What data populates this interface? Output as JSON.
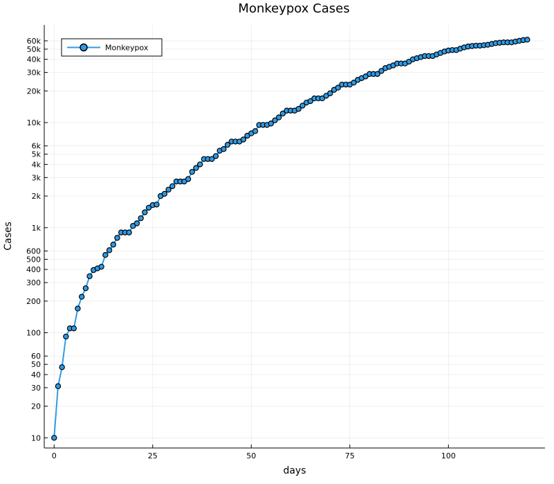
{
  "chart_data": {
    "type": "line",
    "title": "Monkeypox Cases",
    "xlabel": "days",
    "ylabel": "Cases",
    "yscale": "log",
    "xlim": [
      -2.5,
      124.5
    ],
    "ylim": [
      8,
      85000
    ],
    "grid": true,
    "legend_position": "top-left",
    "x_ticks": [
      {
        "value": 0,
        "label": "0"
      },
      {
        "value": 25,
        "label": "25"
      },
      {
        "value": 50,
        "label": "50"
      },
      {
        "value": 75,
        "label": "75"
      },
      {
        "value": 100,
        "label": "100"
      }
    ],
    "y_ticks": [
      {
        "value": 10,
        "label": "10"
      },
      {
        "value": 20,
        "label": "20"
      },
      {
        "value": 30,
        "label": "30"
      },
      {
        "value": 40,
        "label": "40"
      },
      {
        "value": 50,
        "label": "50"
      },
      {
        "value": 60,
        "label": "60"
      },
      {
        "value": 100,
        "label": "100"
      },
      {
        "value": 200,
        "label": "200"
      },
      {
        "value": 300,
        "label": "300"
      },
      {
        "value": 400,
        "label": "400"
      },
      {
        "value": 500,
        "label": "500"
      },
      {
        "value": 600,
        "label": "600"
      },
      {
        "value": 1000,
        "label": "1k"
      },
      {
        "value": 2000,
        "label": "2k"
      },
      {
        "value": 3000,
        "label": "3k"
      },
      {
        "value": 4000,
        "label": "4k"
      },
      {
        "value": 5000,
        "label": "5k"
      },
      {
        "value": 6000,
        "label": "6k"
      },
      {
        "value": 10000,
        "label": "10k"
      },
      {
        "value": 20000,
        "label": "20k"
      },
      {
        "value": 30000,
        "label": "30k"
      },
      {
        "value": 40000,
        "label": "40k"
      },
      {
        "value": 50000,
        "label": "50k"
      },
      {
        "value": 60000,
        "label": "60k"
      }
    ],
    "series": [
      {
        "name": "Monkeypox",
        "color": "#2E9BE6",
        "marker": "circle",
        "x": [
          0,
          1,
          2,
          3,
          4,
          5,
          6,
          7,
          8,
          9,
          10,
          11,
          12,
          13,
          14,
          15,
          16,
          17,
          18,
          19,
          20,
          21,
          22,
          23,
          24,
          25,
          26,
          27,
          28,
          29,
          30,
          31,
          32,
          33,
          34,
          35,
          36,
          37,
          38,
          39,
          40,
          41,
          42,
          43,
          44,
          45,
          46,
          47,
          48,
          49,
          50,
          51,
          52,
          53,
          54,
          55,
          56,
          57,
          58,
          59,
          60,
          61,
          62,
          63,
          64,
          65,
          66,
          67,
          68,
          69,
          70,
          71,
          72,
          73,
          74,
          75,
          76,
          77,
          78,
          79,
          80,
          81,
          82,
          83,
          84,
          85,
          86,
          87,
          88,
          89,
          90,
          91,
          92,
          93,
          94,
          95,
          96,
          97,
          98,
          99,
          100,
          101,
          102,
          103,
          104,
          105,
          106,
          107,
          108,
          109,
          110,
          111,
          112,
          113,
          114,
          115,
          116,
          117,
          118,
          119,
          120
        ],
        "values": [
          10,
          31,
          47,
          92,
          110,
          110,
          170,
          220,
          265,
          345,
          395,
          410,
          425,
          550,
          610,
          690,
          800,
          900,
          900,
          900,
          1040,
          1100,
          1230,
          1400,
          1550,
          1640,
          1660,
          2000,
          2100,
          2300,
          2480,
          2750,
          2750,
          2750,
          2900,
          3400,
          3700,
          4000,
          4500,
          4500,
          4500,
          4800,
          5400,
          5600,
          6150,
          6600,
          6600,
          6600,
          6900,
          7500,
          7900,
          8300,
          9500,
          9500,
          9500,
          9800,
          10500,
          11200,
          12200,
          13000,
          13000,
          13000,
          13500,
          14500,
          15500,
          16000,
          17000,
          17000,
          17000,
          18000,
          19000,
          20500,
          21500,
          23000,
          23000,
          23000,
          24000,
          25500,
          26500,
          27500,
          29000,
          29000,
          29000,
          31000,
          33000,
          34000,
          35000,
          36500,
          36500,
          36500,
          38000,
          40000,
          41000,
          42000,
          43000,
          43000,
          43000,
          44500,
          46000,
          47500,
          48500,
          49000,
          49000,
          50500,
          52000,
          53000,
          53500,
          54000,
          54000,
          54500,
          55000,
          56000,
          57000,
          57500,
          58000,
          58000,
          58000,
          59000,
          60000,
          61000,
          61500
        ]
      }
    ]
  }
}
